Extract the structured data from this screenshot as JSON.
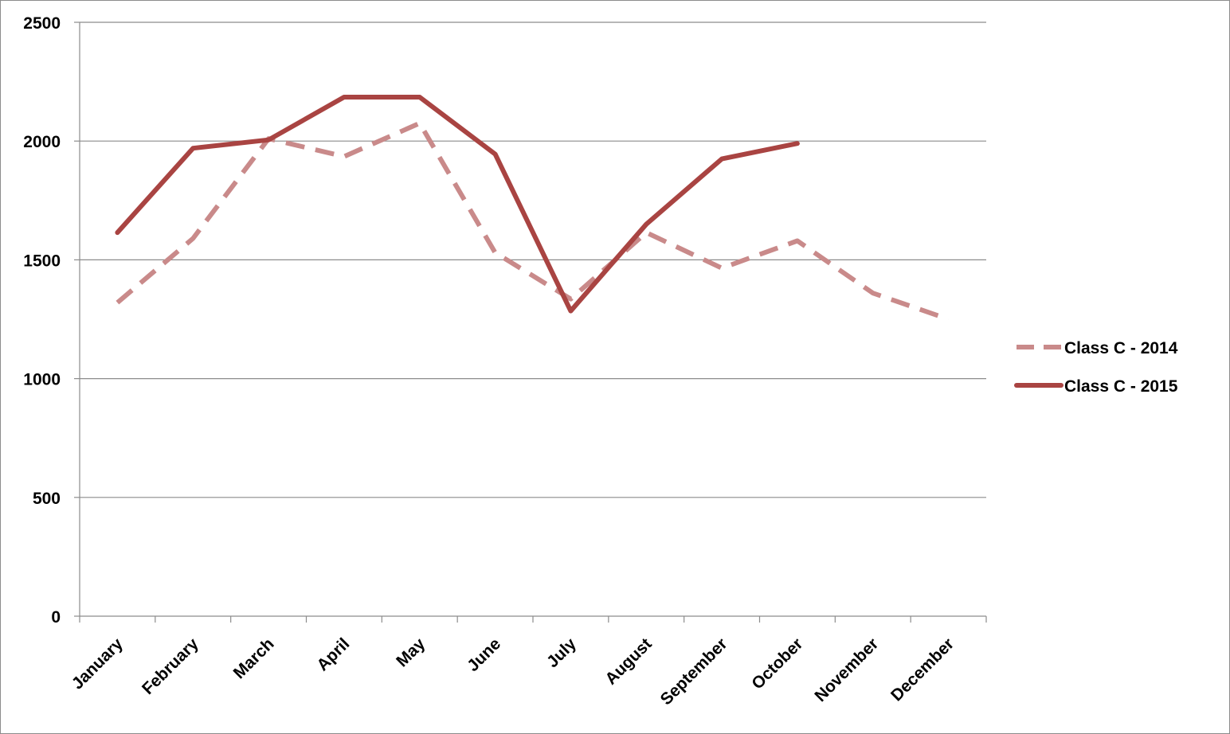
{
  "chart_data": {
    "type": "line",
    "title": "",
    "xlabel": "",
    "ylabel": "",
    "categories": [
      "January",
      "February",
      "March",
      "April",
      "May",
      "June",
      "July",
      "August",
      "September",
      "October",
      "November",
      "December"
    ],
    "ylim": [
      0,
      2500
    ],
    "yticks": [
      "0",
      "500",
      "1000",
      "1500",
      "2000",
      "2500"
    ],
    "grid": true,
    "legend_position": "right",
    "series": [
      {
        "name": "Class C - 2014",
        "color": "#c98a8a",
        "style": "dashed",
        "values": [
          1320,
          1590,
          2010,
          1935,
          2075,
          1530,
          1335,
          1615,
          1465,
          1580,
          1360,
          1250
        ]
      },
      {
        "name": "Class C - 2015",
        "color": "#a94442",
        "style": "solid",
        "values": [
          1615,
          1970,
          2005,
          2185,
          2185,
          1945,
          1285,
          1650,
          1925,
          1990,
          null,
          null
        ]
      }
    ]
  }
}
